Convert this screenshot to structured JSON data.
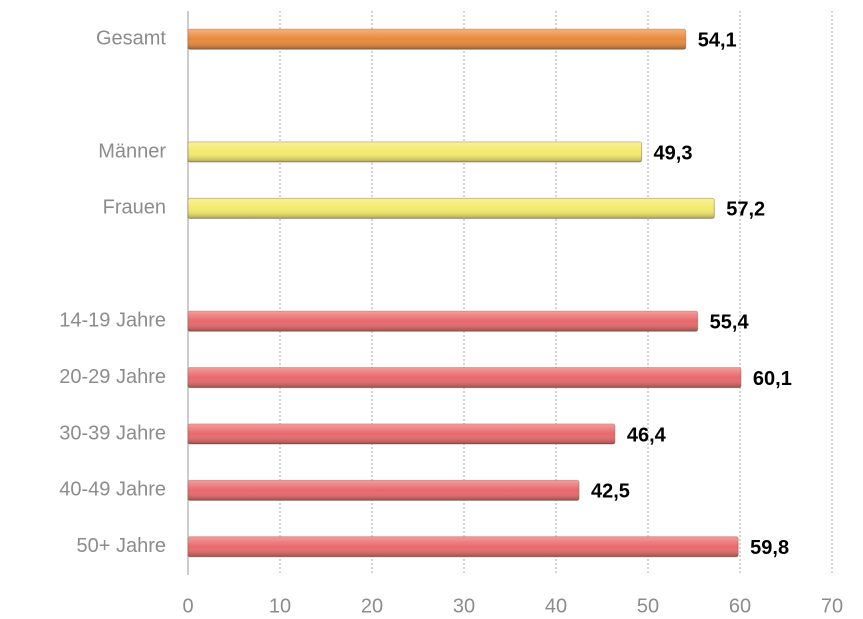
{
  "chart_data": {
    "type": "hbar",
    "categories": [
      "Gesamt",
      null,
      "Männer",
      "Frauen",
      null,
      "14-19 Jahre",
      "20-29 Jahre",
      "30-39 Jahre",
      "40-49 Jahre",
      "50+ Jahre"
    ],
    "values": [
      54.1,
      null,
      49.3,
      57.2,
      null,
      55.4,
      60.1,
      46.4,
      42.5,
      59.8
    ],
    "value_labels": [
      "54,1",
      null,
      "49,3",
      "57,2",
      null,
      "55,4",
      "60,1",
      "46,4",
      "42,5",
      "59,8"
    ],
    "colors": [
      "#e8893a",
      null,
      "#f3ea6a",
      "#f3ea6a",
      null,
      "#e8686a",
      "#e8686a",
      "#e8686a",
      "#e8686a",
      "#e8686a"
    ],
    "xlim": [
      0,
      70
    ],
    "xticks": [
      0,
      10,
      20,
      30,
      40,
      50,
      60,
      70
    ],
    "grid": true
  }
}
